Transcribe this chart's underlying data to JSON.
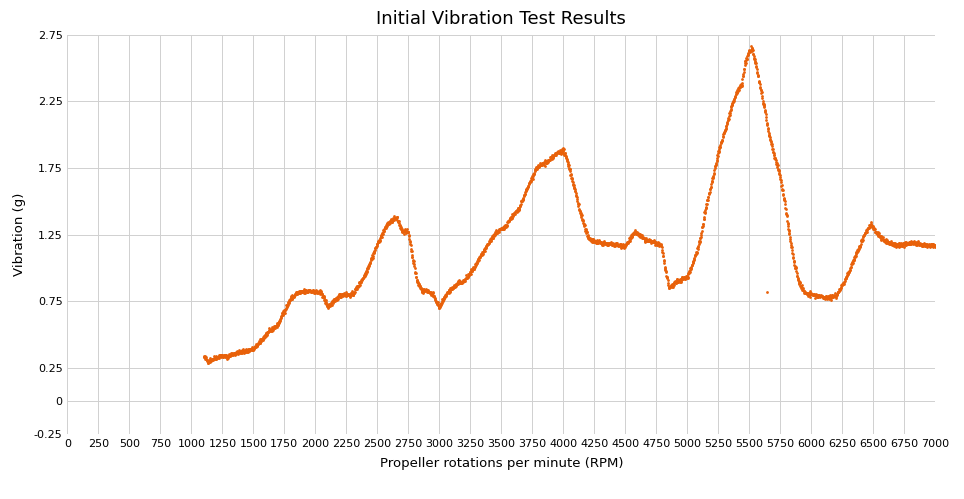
{
  "title": "Initial Vibration Test Results",
  "xlabel": "Propeller rotations per minute (RPM)",
  "ylabel": "Vibration (g)",
  "xlim": [
    0,
    7000
  ],
  "ylim": [
    -0.25,
    2.75
  ],
  "xticks": [
    0,
    250,
    500,
    750,
    1000,
    1250,
    1500,
    1750,
    2000,
    2250,
    2500,
    2750,
    3000,
    3250,
    3500,
    3750,
    4000,
    4250,
    4500,
    4750,
    5000,
    5250,
    5500,
    5750,
    6000,
    6250,
    6500,
    6750,
    7000
  ],
  "yticks": [
    -0.25,
    0,
    0.25,
    0.75,
    1.25,
    1.75,
    2.25,
    2.75
  ],
  "ytick_labels": [
    "-0.25",
    "0",
    "0.25",
    "0.75",
    "1.25",
    "1.75",
    "2.25",
    "2.75"
  ],
  "dot_color": "#E8610A",
  "dot_size": 4,
  "background_color": "#ffffff",
  "grid_color": "#d0d0d0",
  "title_fontsize": 13,
  "label_fontsize": 9.5,
  "tick_fontsize": 8
}
